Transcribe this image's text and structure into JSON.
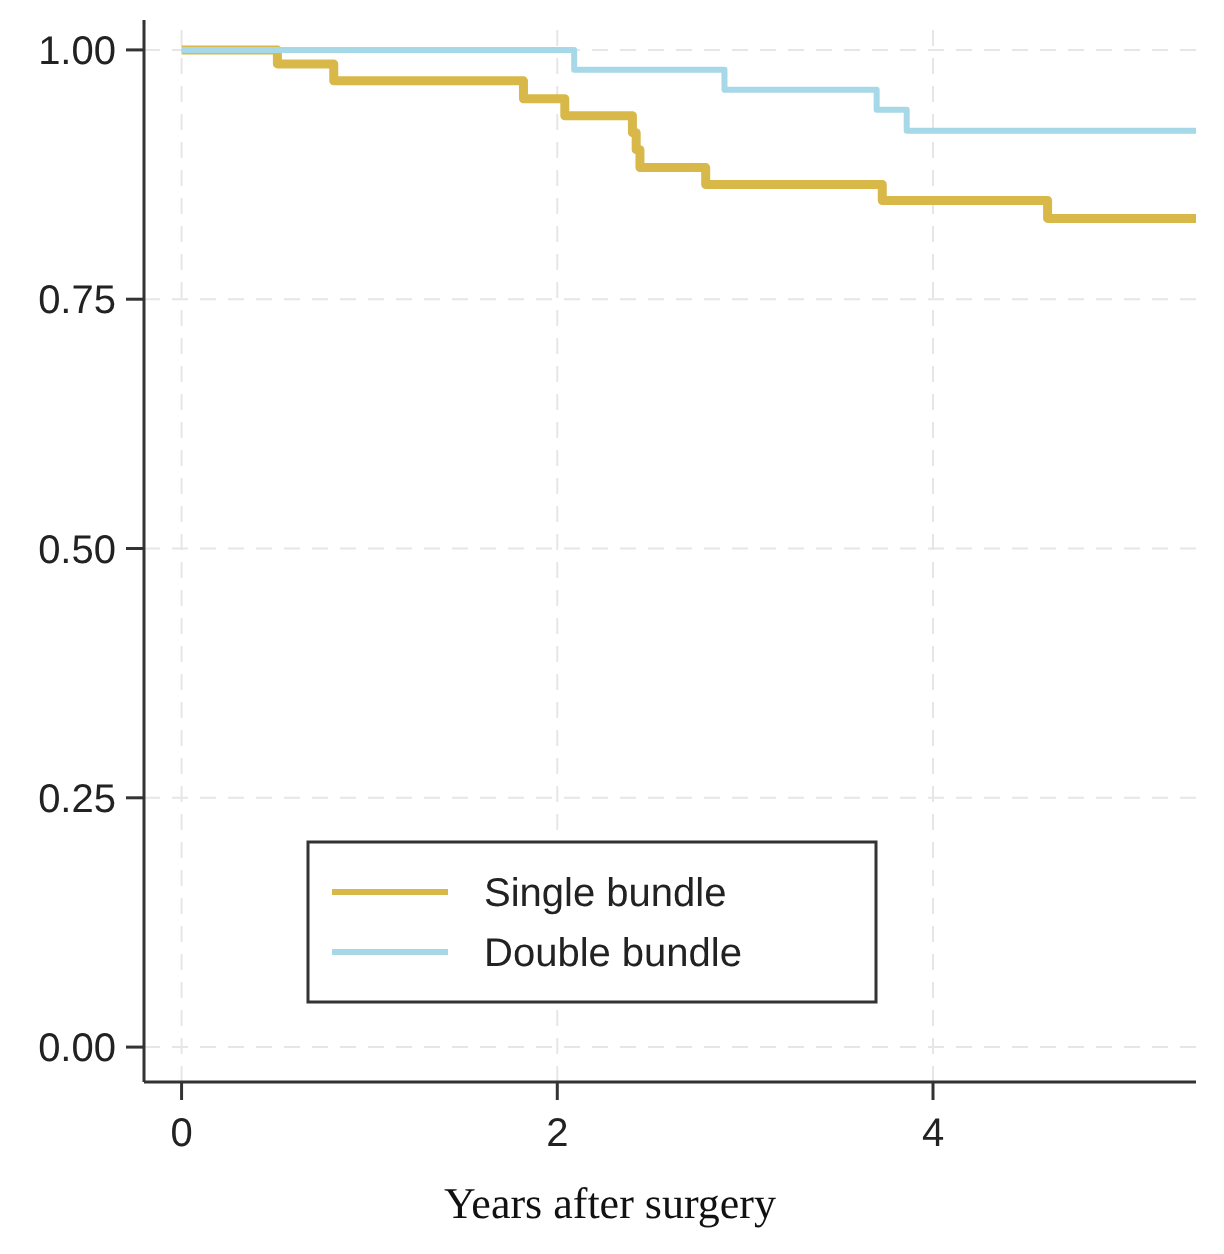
{
  "chart_data": {
    "type": "step",
    "xlabel": "Years after surgery",
    "xlim": [
      -0.2,
      5.4
    ],
    "xticks": [
      0,
      2,
      4
    ],
    "ylim": [
      -0.035,
      1.03
    ],
    "yticks": [
      {
        "value": 0,
        "label": "0.00"
      },
      {
        "value": 0.25,
        "label": "0.25"
      },
      {
        "value": 0.5,
        "label": "0.50"
      },
      {
        "value": 0.75,
        "label": "0.75"
      },
      {
        "value": 1,
        "label": "1.00"
      }
    ],
    "grid": true,
    "legend": "bottom left",
    "line_style": "solid",
    "series": [
      {
        "name": "Single bundle",
        "color": "#d9b84a",
        "x": [
          0,
          0.51,
          0.81,
          1.82,
          2.04,
          2.4,
          2.42,
          2.44,
          2.79,
          3.73,
          4.61,
          5.4
        ],
        "values": [
          1,
          0.986,
          0.969,
          0.951,
          0.934,
          0.917,
          0.9,
          0.882,
          0.865,
          0.849,
          0.831,
          0.831
        ]
      },
      {
        "name": "Double bundle",
        "color": "#a6d8e8",
        "x": [
          0,
          2.09,
          2.89,
          3.7,
          3.86,
          5.4
        ],
        "values": [
          1,
          0.98,
          0.96,
          0.94,
          0.919,
          0.919
        ]
      }
    ]
  }
}
